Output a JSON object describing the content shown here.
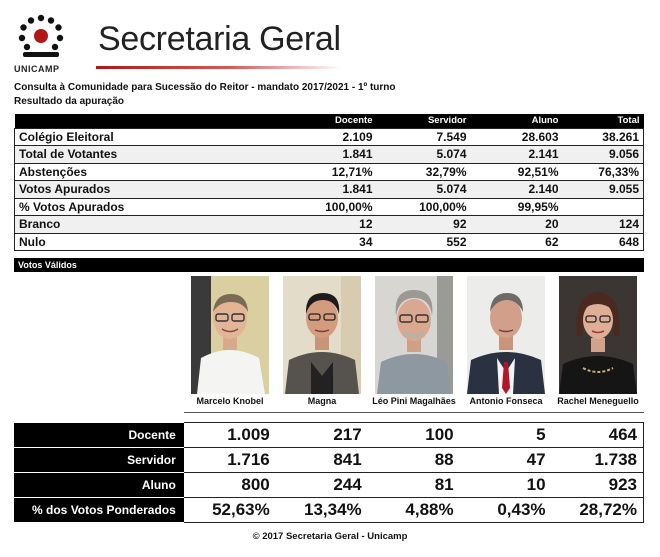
{
  "header": {
    "logo_text": "UNICAMP",
    "title": "Secretaria Geral"
  },
  "subtitle": "Consulta à Comunidade para Sucessão do Reitor - mandato 2017/2021 - 1º turno",
  "subtitle2": "Resultado da apuração",
  "results_table": {
    "columns": [
      "",
      "Docente",
      "Servidor",
      "Aluno",
      "Total"
    ],
    "rows": [
      {
        "label": "Colégio Eleitoral",
        "values": [
          "2.109",
          "7.549",
          "28.603",
          "38.261"
        ]
      },
      {
        "label": "Total de Votantes",
        "values": [
          "1.841",
          "5.074",
          "2.141",
          "9.056"
        ]
      },
      {
        "label": "Abstenções",
        "values": [
          "12,71%",
          "32,79%",
          "92,51%",
          "76,33%"
        ]
      },
      {
        "label": "Votos Apurados",
        "values": [
          "1.841",
          "5.074",
          "2.140",
          "9.055"
        ]
      },
      {
        "label": "% Votos Apurados",
        "values": [
          "100,00%",
          "100,00%",
          "99,95%",
          ""
        ]
      },
      {
        "label": "Branco",
        "values": [
          "12",
          "92",
          "20",
          "124"
        ]
      },
      {
        "label": "Nulo",
        "values": [
          "34",
          "552",
          "62",
          "648"
        ]
      }
    ]
  },
  "section_label": "Votos Válidos",
  "candidates": [
    {
      "name": "Marcelo Knobel"
    },
    {
      "name": "Magna"
    },
    {
      "name": "Léo Pini Magalhães"
    },
    {
      "name": "Antonio Fonseca"
    },
    {
      "name": "Rachel Meneguello"
    }
  ],
  "votes_table": {
    "rows": [
      {
        "label": "Docente",
        "values": [
          "1.009",
          "217",
          "100",
          "5",
          "464"
        ]
      },
      {
        "label": "Servidor",
        "values": [
          "1.716",
          "841",
          "88",
          "47",
          "1.738"
        ]
      },
      {
        "label": "Aluno",
        "values": [
          "800",
          "244",
          "81",
          "10",
          "923"
        ]
      },
      {
        "label": "% dos Votos Ponderados",
        "values": [
          "52,63%",
          "13,34%",
          "4,88%",
          "0,43%",
          "28,72%"
        ]
      }
    ]
  },
  "footer": "© 2017 Secretaria Geral - Unicamp",
  "colors": {
    "accent_red": "#b01818",
    "header_black": "#000000"
  }
}
